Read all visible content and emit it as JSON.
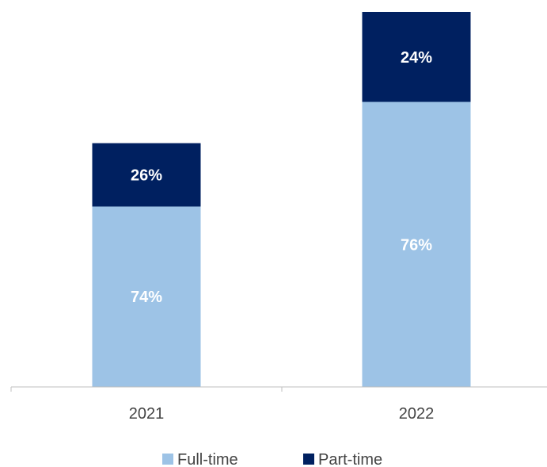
{
  "chart_data": {
    "type": "bar",
    "stacked": true,
    "categories": [
      "2021",
      "2022"
    ],
    "series": [
      {
        "name": "Full-time",
        "values": [
          74,
          76
        ],
        "color": "#9dc3e6",
        "value_labels": [
          "74%",
          "76%"
        ]
      },
      {
        "name": "Part-time",
        "values": [
          26,
          24
        ],
        "color": "#002060",
        "value_labels": [
          "26%",
          "24%"
        ]
      }
    ],
    "totals_relative": [
      0.65,
      1.0
    ],
    "grid": false,
    "legend": "bottom"
  }
}
